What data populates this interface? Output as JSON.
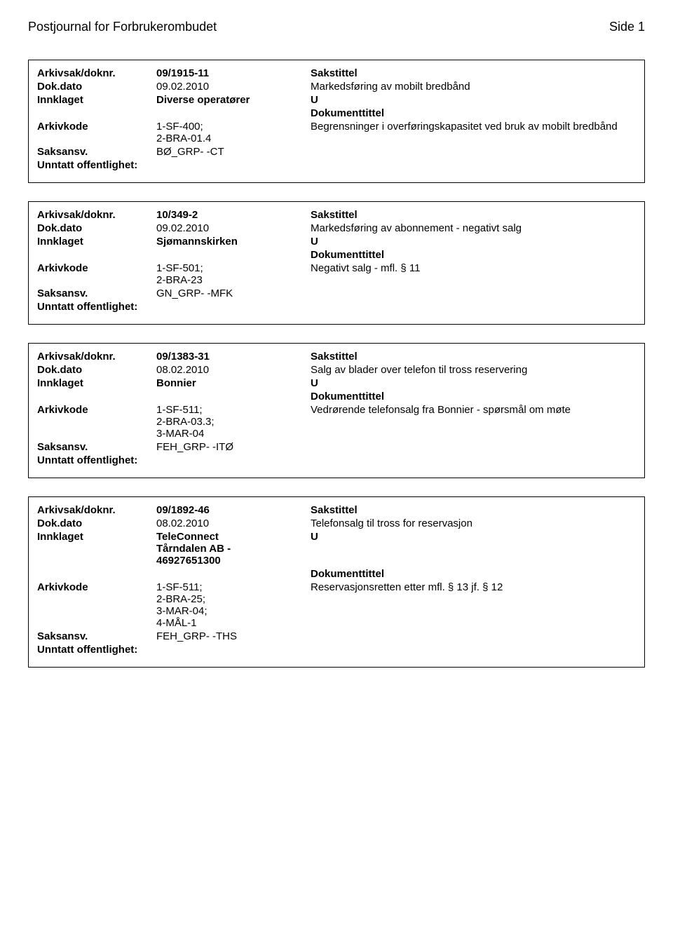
{
  "header": {
    "title": "Postjournal for Forbrukerombudet",
    "page": "Side 1"
  },
  "labels": {
    "arkivsak": "Arkivsak/doknr.",
    "dokdato": "Dok.dato",
    "innklaget": "Innklaget",
    "arkivkode": "Arkivkode",
    "saksansv": "Saksansv.",
    "unntatt": "Unntatt offentlighet:",
    "sakstittel": "Sakstittel",
    "dokumenttittel": "Dokumenttittel"
  },
  "records": [
    {
      "arkivsak": "09/1915-11",
      "dokdato": "09.02.2010",
      "innklaget": "Diverse operatører",
      "arkivkode": "1-SF-400;\n2-BRA-01.4",
      "saksansv": "BØ_GRP- -CT",
      "sakstittel": "Markedsføring av mobilt bredbånd",
      "u": "U",
      "dokumenttittel": "Begrensninger i overføringskapasitet ved bruk av mobilt bredbånd"
    },
    {
      "arkivsak": "10/349-2",
      "dokdato": "09.02.2010",
      "innklaget": "Sjømannskirken",
      "arkivkode": "1-SF-501;\n2-BRA-23",
      "saksansv": "GN_GRP- -MFK",
      "sakstittel": "Markedsføring av abonnement - negativt salg",
      "u": "U",
      "dokumenttittel": "Negativt salg - mfl. § 11"
    },
    {
      "arkivsak": "09/1383-31",
      "dokdato": "08.02.2010",
      "innklaget": "Bonnier",
      "arkivkode": "1-SF-511;\n2-BRA-03.3;\n3-MAR-04",
      "saksansv": "FEH_GRP- -ITØ",
      "sakstittel": "Salg av blader over telefon til tross reservering",
      "u": "U",
      "dokumenttittel": "Vedrørende telefonsalg fra Bonnier - spørsmål om møte"
    },
    {
      "arkivsak": "09/1892-46",
      "dokdato": "08.02.2010",
      "innklaget": "TeleConnect\nTårndalen AB -\n46927651300",
      "arkivkode": "1-SF-511;\n2-BRA-25;\n3-MAR-04;\n4-MÅL-1",
      "saksansv": "FEH_GRP- -THS",
      "sakstittel": "Telefonsalg til tross for reservasjon",
      "u": "U",
      "dokumenttittel": "Reservasjonsretten etter mfl. § 13 jf. § 12"
    }
  ]
}
